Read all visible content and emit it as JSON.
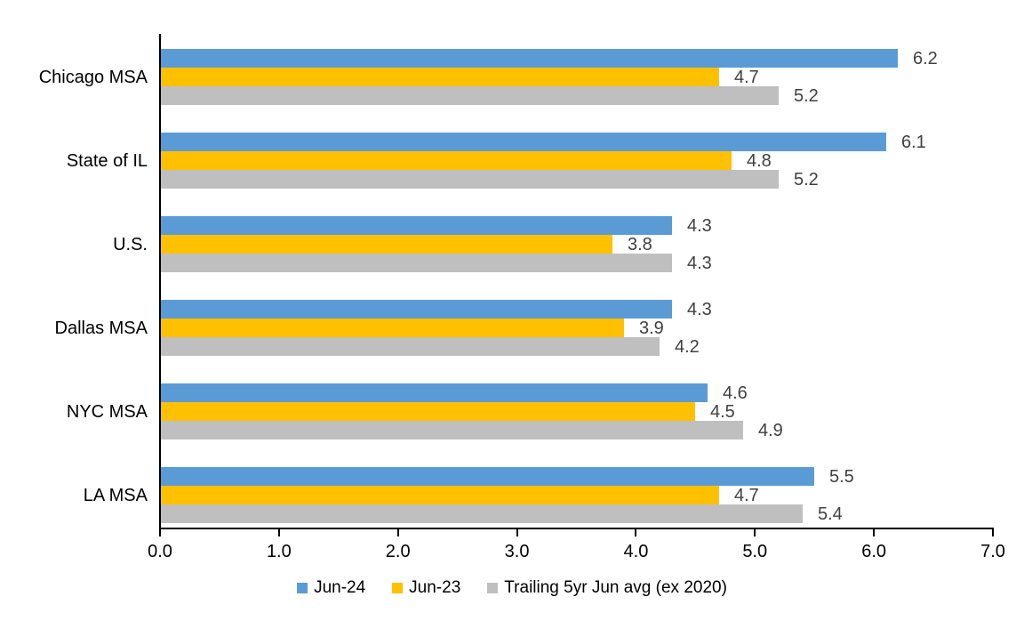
{
  "chart_data": {
    "type": "bar",
    "orientation": "horizontal",
    "title": "",
    "xlabel": "",
    "ylabel": "",
    "categories": [
      "Chicago MSA",
      "State of IL",
      "U.S.",
      "Dallas MSA",
      "NYC MSA",
      "LA MSA"
    ],
    "series": [
      {
        "name": "Jun-24",
        "color": "#5B9BD5",
        "values": [
          6.2,
          6.1,
          4.3,
          4.3,
          4.6,
          5.5
        ]
      },
      {
        "name": "Jun-23",
        "color": "#FFC000",
        "values": [
          4.7,
          4.8,
          3.8,
          3.9,
          4.5,
          4.7
        ]
      },
      {
        "name": "Trailing 5yr Jun avg (ex 2020)",
        "color": "#BFBFBF",
        "values": [
          5.2,
          5.2,
          4.3,
          4.2,
          4.9,
          5.4
        ]
      }
    ],
    "xlim": [
      0,
      7
    ],
    "xticks": [
      "0.0",
      "1.0",
      "2.0",
      "3.0",
      "4.0",
      "5.0",
      "6.0",
      "7.0"
    ],
    "grid": false,
    "value_labels": true,
    "value_label_decimals": 1,
    "value_label_color": "#404040",
    "axis_color": "#000000",
    "legend_position": "bottom"
  }
}
